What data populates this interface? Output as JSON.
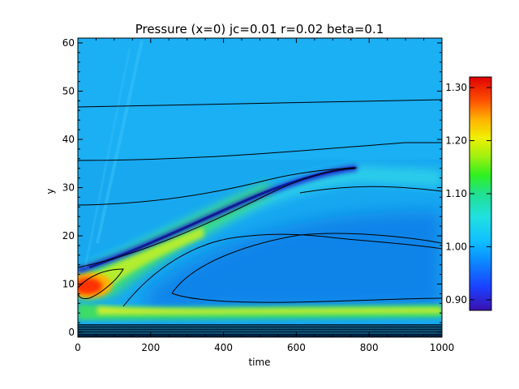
{
  "chart_data": {
    "type": "heatmap",
    "title": "Pressure (x=0) jc=0.01 r=0.02 beta=0.1",
    "xlabel": "time",
    "ylabel": "y",
    "xlim": [
      0,
      1000
    ],
    "ylim": [
      -1,
      61
    ],
    "x_ticks": [
      "0",
      "200",
      "400",
      "600",
      "800",
      "1000"
    ],
    "y_ticks": [
      "0",
      "10",
      "20",
      "30",
      "40",
      "50",
      "60"
    ],
    "colorbar": {
      "range": [
        0.88,
        1.32
      ],
      "ticks": [
        "0.90",
        "1.00",
        "1.10",
        "1.20",
        "1.30"
      ],
      "colormap": "rainbow"
    },
    "features": [
      {
        "name": "high-pressure core",
        "peak_value": 1.3,
        "center": {
          "time": 20,
          "y": 10
        }
      },
      {
        "name": "low-pressure ridge",
        "value": 0.9,
        "path": [
          [
            0,
            13
          ],
          [
            200,
            19
          ],
          [
            400,
            26
          ],
          [
            600,
            32
          ],
          [
            700,
            34
          ]
        ]
      },
      {
        "name": "elevated band",
        "value": 1.12,
        "path": [
          [
            0,
            7
          ],
          [
            200,
            5.5
          ],
          [
            500,
            5
          ],
          [
            1000,
            5
          ]
        ]
      }
    ],
    "grid": false,
    "legend": "colorbar-right"
  }
}
